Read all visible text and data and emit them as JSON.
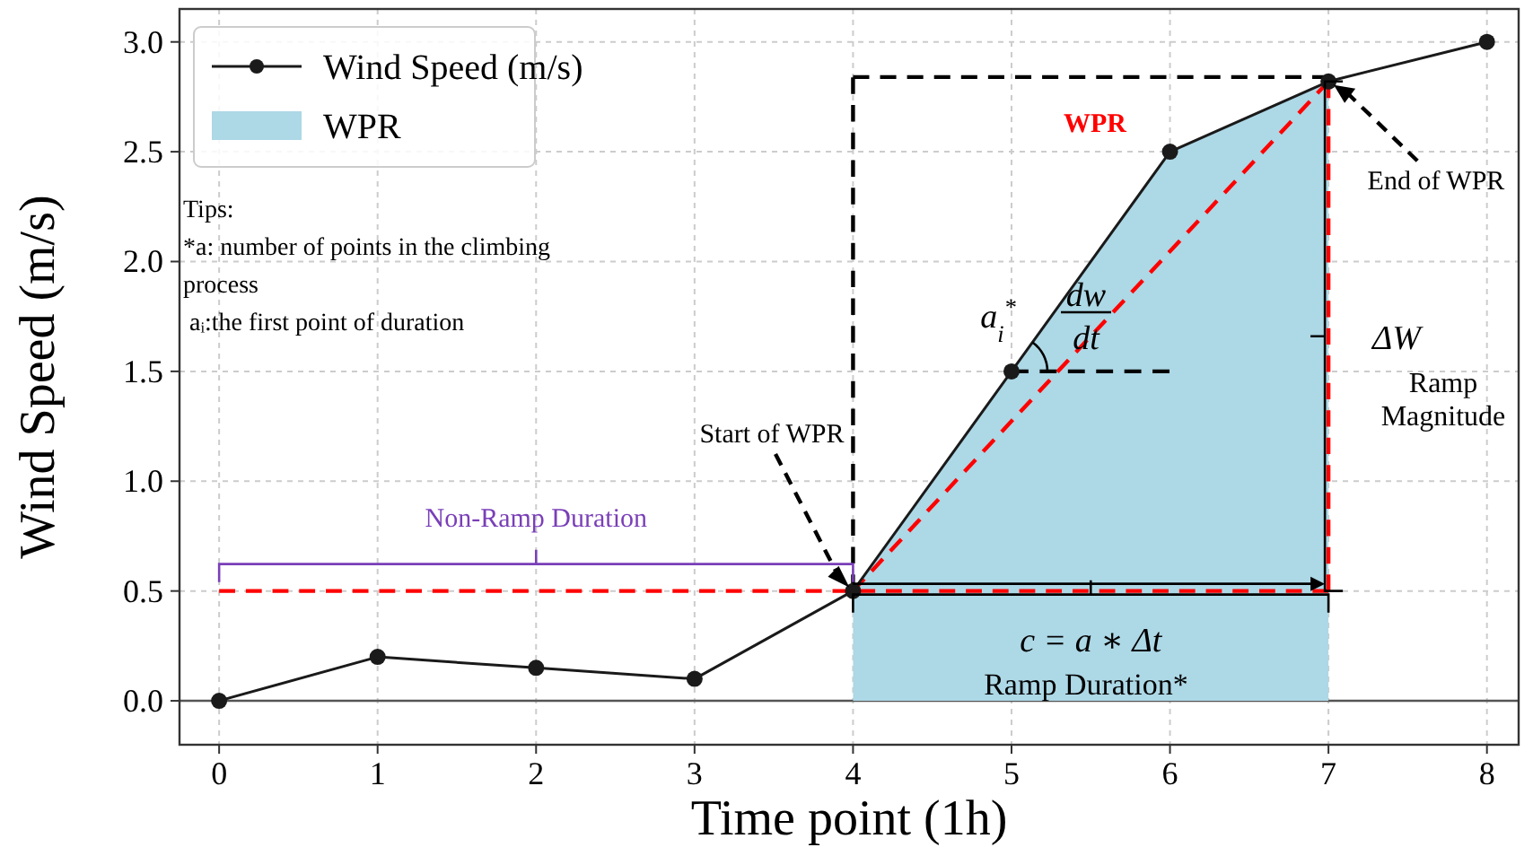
{
  "chart_data": {
    "type": "line",
    "xlabel": "Time point (1h)",
    "ylabel": "Wind Speed (m/s)",
    "xlim": [
      -0.25,
      8.2
    ],
    "ylim": [
      -0.2,
      3.15
    ],
    "xticks": [
      0,
      1,
      2,
      3,
      4,
      5,
      6,
      7,
      8
    ],
    "yticks": [
      {
        "value": 0,
        "label": "0.0"
      },
      {
        "value": 0.5,
        "label": "0.5"
      },
      {
        "value": 1,
        "label": "1.0"
      },
      {
        "value": 1.5,
        "label": "1.5"
      },
      {
        "value": 2,
        "label": "2.0"
      },
      {
        "value": 2.5,
        "label": "2.5"
      },
      {
        "value": 3,
        "label": "3.0"
      }
    ],
    "grid": true,
    "legend": "top left",
    "series": [
      {
        "name": "Wind Speed (m/s)",
        "color": "#1a1a1a",
        "marker": "circle",
        "x": [
          0,
          1,
          2,
          3,
          4,
          5,
          6,
          7,
          8
        ],
        "values": [
          0,
          0.2,
          0.15,
          0.1,
          0.5,
          1.5,
          2.5,
          2.82,
          3.0
        ]
      },
      {
        "name": "WPR",
        "type": "area",
        "color": "#add8e6",
        "x": [
          4,
          5,
          6,
          7
        ],
        "values": [
          0.5,
          1.5,
          2.5,
          2.82
        ]
      },
      {
        "color": "#ff0000",
        "line_style": "dashed",
        "marker": "none",
        "x": [
          0,
          7,
          7,
          4
        ],
        "values": [
          0.5,
          0.5,
          2.82,
          0.5
        ]
      },
      {
        "color": "#000000",
        "line_style": "dashed",
        "marker": "none",
        "x": [
          4,
          4,
          7
        ],
        "values": [
          0.5,
          2.84,
          2.84
        ]
      },
      {
        "color": "#000000",
        "line_style": "dashed",
        "marker": "none",
        "x": [
          5,
          6
        ],
        "values": [
          1.5,
          1.5
        ]
      }
    ],
    "ref_lines": [
      {
        "axis": "y",
        "value": 0,
        "color": "#555555"
      }
    ],
    "annotations": [
      "WPR",
      "End of WPR",
      "Start of WPR",
      "a$_{i}$$^{*}$",
      "dw",
      "dt",
      "ΔW",
      "Ramp Magnitude",
      {
        "text": "Non-Ramp Duration",
        "x": 2,
        "y": 0.5
      },
      {
        "text": "c = a ∗ Δt",
        "x": 5.5,
        "y": 0.5
      },
      "Ramp Duration*",
      "Tips:",
      "*a: number of points in the climbing process",
      " aᵢ:the first point of duration"
    ]
  }
}
